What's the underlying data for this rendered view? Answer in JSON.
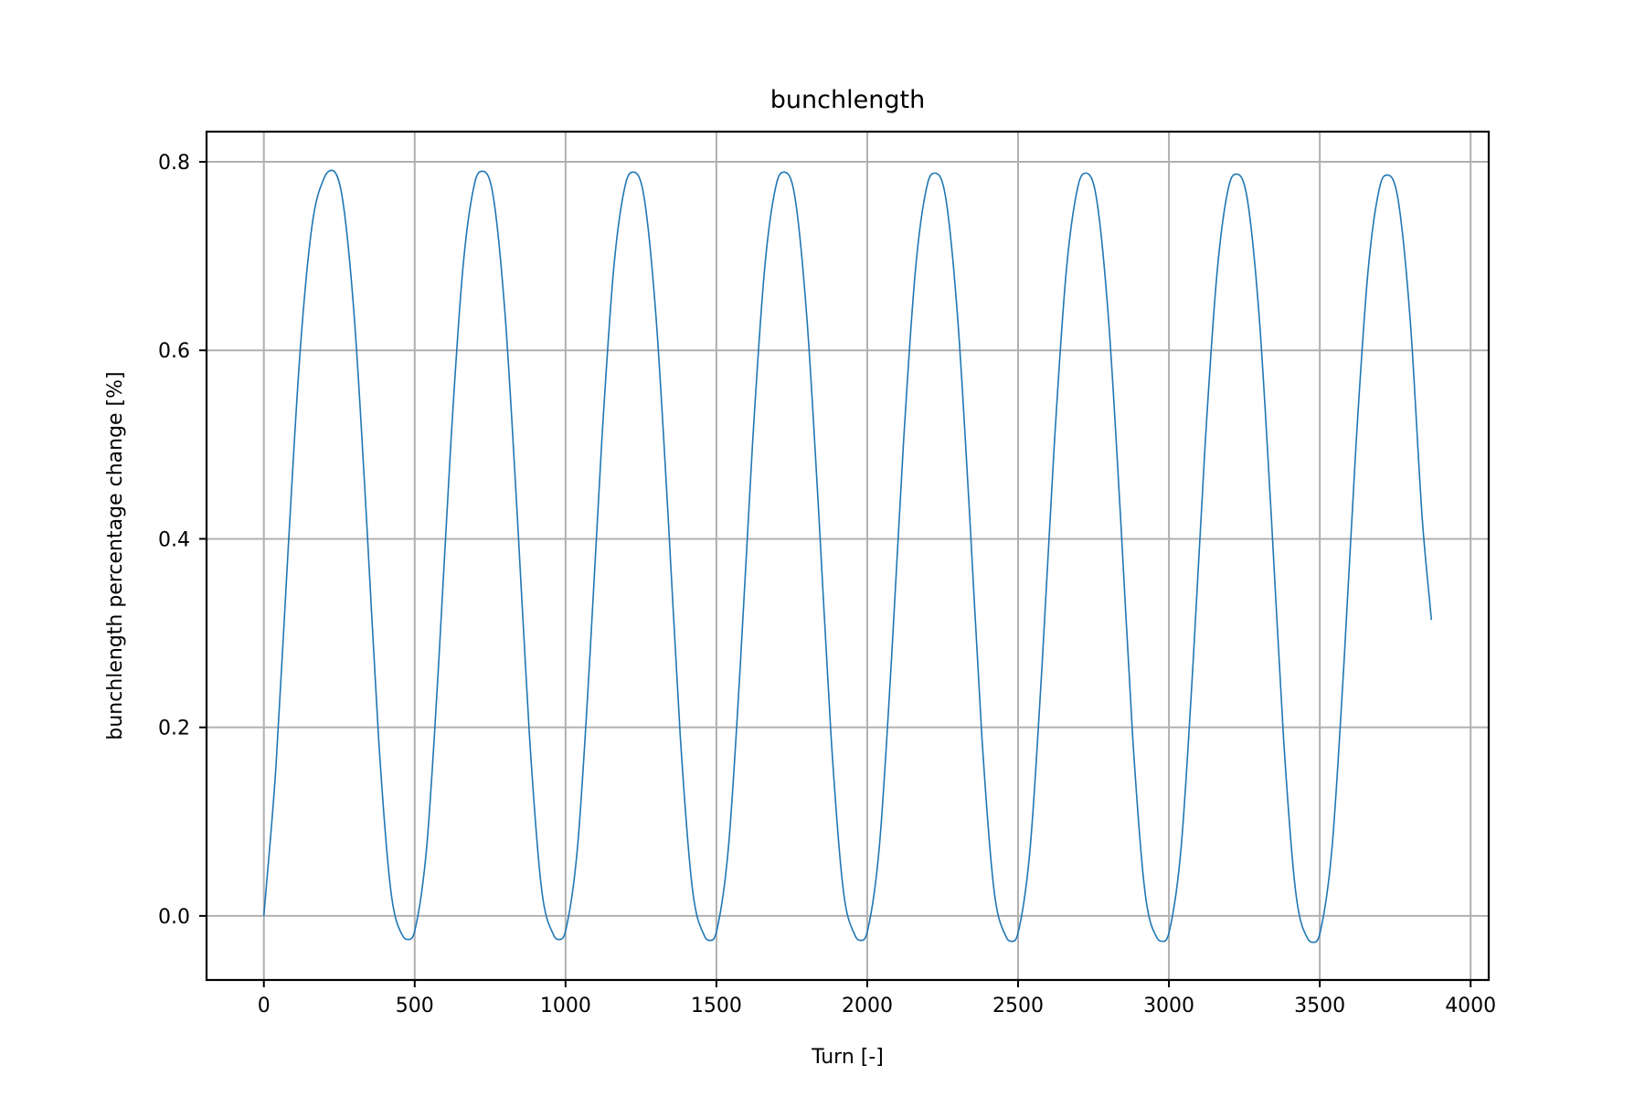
{
  "chart_data": {
    "type": "line",
    "title": "bunchlength",
    "xlabel": "Turn [-]",
    "ylabel": "bunchlength percentage change [%]",
    "xlim": [
      -190,
      4060
    ],
    "ylim": [
      -0.068,
      0.832
    ],
    "xticks": [
      0,
      500,
      1000,
      1500,
      2000,
      2500,
      3000,
      3500,
      4000
    ],
    "xtick_labels": [
      "0",
      "500",
      "1000",
      "1500",
      "2000",
      "2500",
      "3000",
      "3500",
      "4000"
    ],
    "yticks": [
      0.0,
      0.2,
      0.4,
      0.6,
      0.8
    ],
    "ytick_labels": [
      "0.0",
      "0.2",
      "0.4",
      "0.6",
      "0.8"
    ],
    "grid": true,
    "series": [
      {
        "color": "#1f77b4",
        "x": [
          0,
          40,
          80,
          120,
          160,
          200,
          225,
          260,
          300,
          340,
          380,
          420,
          460,
          480,
          500,
          540,
          580,
          620,
          660,
          700,
          725,
          760,
          800,
          840,
          880,
          920,
          960,
          980,
          1000,
          1040,
          1080,
          1120,
          1160,
          1200,
          1225,
          1260,
          1300,
          1340,
          1380,
          1420,
          1460,
          1480,
          1500,
          1540,
          1580,
          1620,
          1660,
          1700,
          1725,
          1760,
          1800,
          1840,
          1880,
          1920,
          1960,
          1980,
          2000,
          2040,
          2080,
          2120,
          2160,
          2200,
          2225,
          2260,
          2300,
          2340,
          2380,
          2420,
          2460,
          2480,
          2500,
          2540,
          2580,
          2620,
          2660,
          2700,
          2725,
          2760,
          2800,
          2840,
          2880,
          2920,
          2960,
          2980,
          3000,
          3040,
          3080,
          3120,
          3160,
          3200,
          3225,
          3260,
          3300,
          3340,
          3380,
          3420,
          3460,
          3480,
          3500,
          3540,
          3580,
          3620,
          3660,
          3700,
          3725,
          3760,
          3800,
          3840,
          3870
        ],
        "y": [
          0.0,
          0.158,
          0.386,
          0.598,
          0.733,
          0.783,
          0.791,
          0.762,
          0.634,
          0.423,
          0.19,
          0.029,
          -0.021,
          -0.025,
          -0.016,
          0.074,
          0.271,
          0.503,
          0.688,
          0.779,
          0.79,
          0.764,
          0.636,
          0.425,
          0.193,
          0.03,
          -0.02,
          -0.025,
          -0.016,
          0.074,
          0.271,
          0.503,
          0.688,
          0.778,
          0.789,
          0.763,
          0.635,
          0.424,
          0.192,
          0.03,
          -0.021,
          -0.026,
          -0.017,
          0.073,
          0.27,
          0.502,
          0.687,
          0.778,
          0.789,
          0.763,
          0.634,
          0.423,
          0.191,
          0.029,
          -0.021,
          -0.026,
          -0.017,
          0.073,
          0.27,
          0.501,
          0.686,
          0.777,
          0.788,
          0.762,
          0.633,
          0.422,
          0.19,
          0.028,
          -0.022,
          -0.027,
          -0.018,
          0.072,
          0.269,
          0.5,
          0.685,
          0.776,
          0.788,
          0.761,
          0.632,
          0.421,
          0.189,
          0.027,
          -0.023,
          -0.027,
          -0.018,
          0.071,
          0.268,
          0.5,
          0.684,
          0.776,
          0.787,
          0.76,
          0.632,
          0.42,
          0.188,
          0.026,
          -0.024,
          -0.028,
          -0.019,
          0.07,
          0.267,
          0.499,
          0.684,
          0.775,
          0.786,
          0.759,
          0.631,
          0.42,
          0.314
        ]
      }
    ]
  }
}
